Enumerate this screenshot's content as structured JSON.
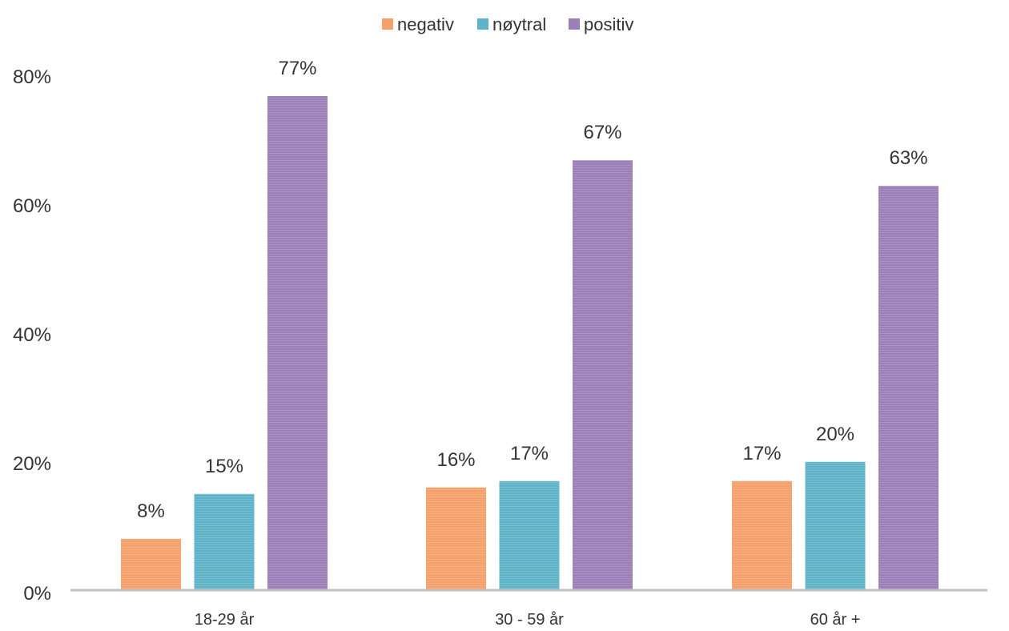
{
  "chart_data": {
    "type": "bar",
    "title": "",
    "xlabel": "",
    "ylabel": "",
    "categories": [
      "18-29 år",
      "30 - 59 år",
      "60 år +"
    ],
    "series": [
      {
        "name": "negativ",
        "values": [
          8,
          16,
          17
        ],
        "labels": [
          "8%",
          "16%",
          "17%"
        ],
        "color": "#F5A06B"
      },
      {
        "name": "nøytral",
        "values": [
          15,
          17,
          20
        ],
        "labels": [
          "15%",
          "17%",
          "20%"
        ],
        "color": "#5FB3C8"
      },
      {
        "name": "positiv",
        "values": [
          77,
          67,
          63
        ],
        "labels": [
          "77%",
          "67%",
          "63%"
        ],
        "color": "#9B80B8"
      }
    ],
    "ylim": [
      0,
      80
    ],
    "yticks": [
      0,
      20,
      40,
      60,
      80
    ],
    "ytick_labels": [
      "0%",
      "20%",
      "40%",
      "60%",
      "80%"
    ],
    "grid": false,
    "legend": "top-center",
    "axis_color": "#BFBFBF"
  }
}
